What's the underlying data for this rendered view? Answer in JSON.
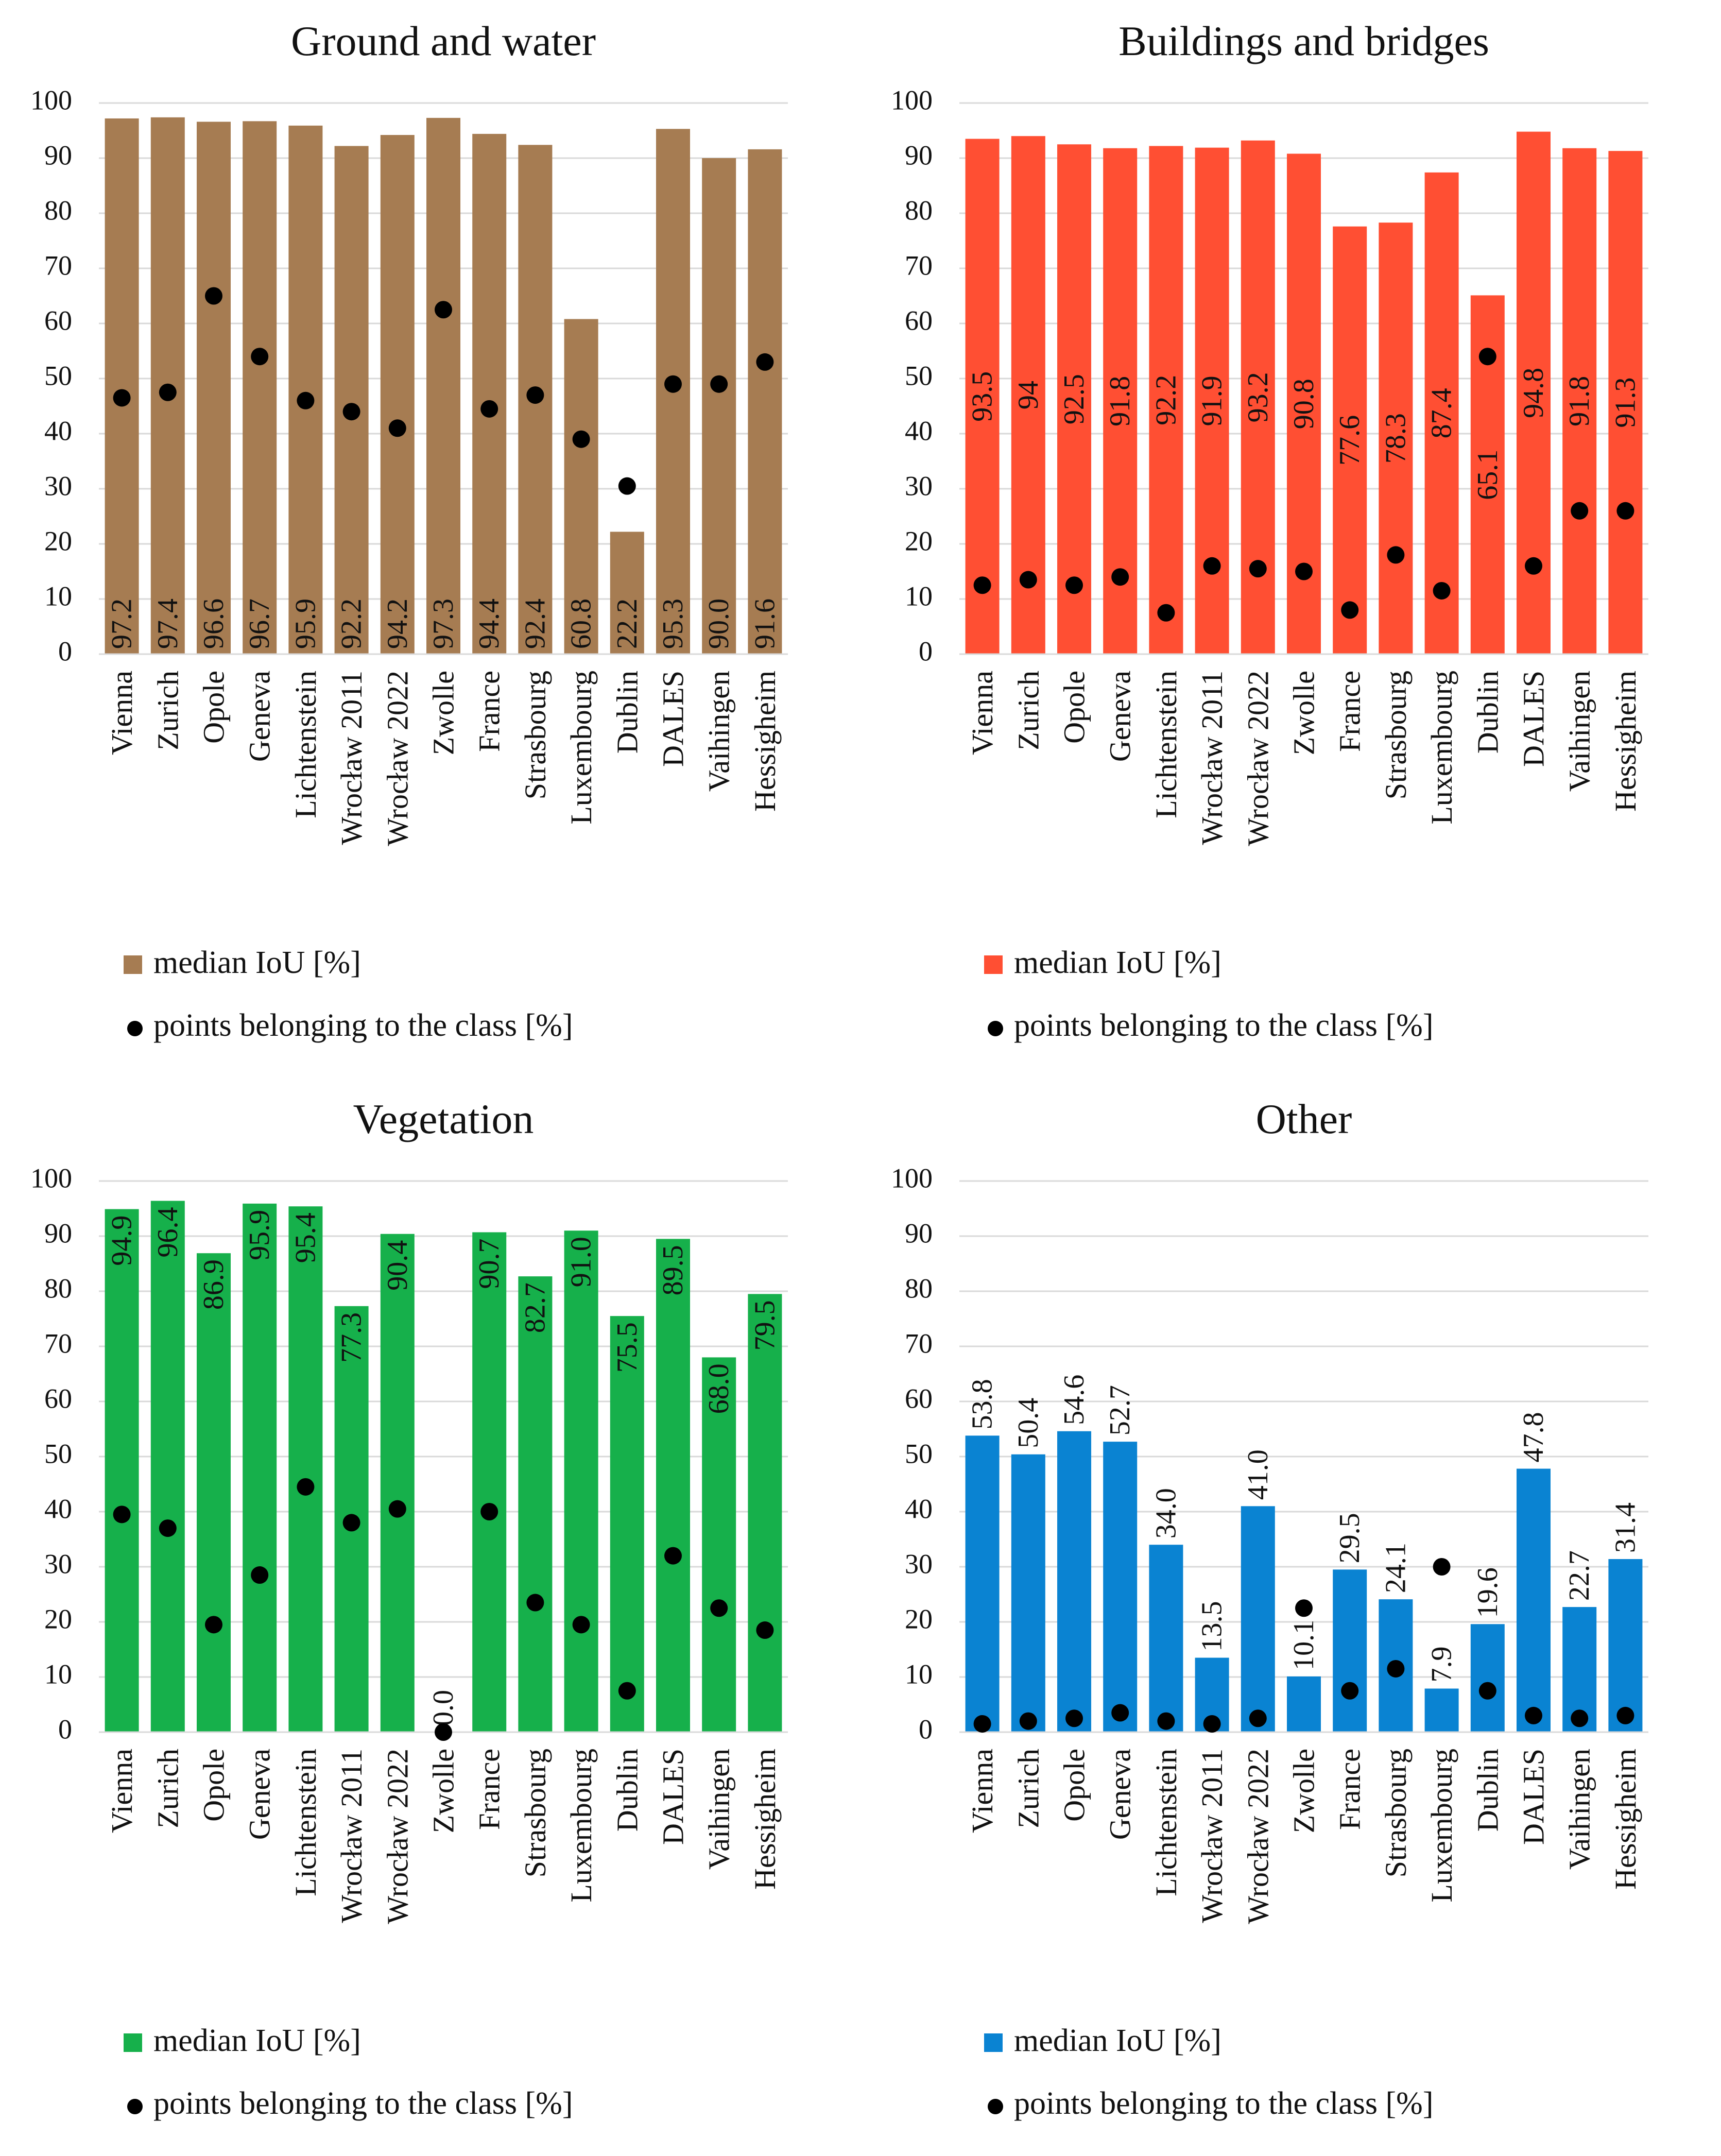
{
  "colors": {
    "ground": "#a67c52",
    "buildings": "#ff4f33",
    "vegetation": "#16b04b",
    "other": "#0a83d2",
    "points": "#000000"
  },
  "legend": {
    "bar_label": "median IoU [%]",
    "point_label": "points belonging to the class [%]"
  },
  "chart_data": [
    {
      "id": "ground",
      "type": "bar",
      "title": "Ground and water",
      "categories": [
        "Vienna",
        "Zurich",
        "Opole",
        "Geneva",
        "Lichtenstein",
        "Wrocław 2011",
        "Wrocław 2022",
        "Zwolle",
        "France",
        "Strasbourg",
        "Luxembourg",
        "Dublin",
        "DALES",
        "Vaihingen",
        "Hessigheim"
      ],
      "ylim": [
        0,
        100
      ],
      "yticks": [
        0,
        10,
        20,
        30,
        40,
        50,
        60,
        70,
        80,
        90,
        100
      ],
      "label_mode": "bottom",
      "series": [
        {
          "name": "median IoU [%]",
          "kind": "bar",
          "values": [
            97.2,
            97.4,
            96.6,
            96.7,
            95.9,
            92.2,
            94.2,
            97.3,
            94.4,
            92.4,
            60.8,
            22.2,
            95.3,
            90.0,
            91.6
          ],
          "labels": [
            "97.2",
            "97.4",
            "96.6",
            "96.7",
            "95.9",
            "92.2",
            "94.2",
            "97.3",
            "94.4",
            "92.4",
            "60.8",
            "22.2",
            "95.3",
            "90.0",
            "91.6"
          ]
        },
        {
          "name": "points belonging to the class [%]",
          "kind": "point",
          "values": [
            46.5,
            47.5,
            65.0,
            54.0,
            46.0,
            44.0,
            41.0,
            62.5,
            44.5,
            47.0,
            39.0,
            30.5,
            49.0,
            49.0,
            53.0
          ]
        }
      ]
    },
    {
      "id": "buildings",
      "type": "bar",
      "title": "Buildings and bridges",
      "categories": [
        "Vienna",
        "Zurich",
        "Opole",
        "Geneva",
        "Lichtenstein",
        "Wrocław 2011",
        "Wrocław 2022",
        "Zwolle",
        "France",
        "Strasbourg",
        "Luxembourg",
        "Dublin",
        "DALES",
        "Vaihingen",
        "Hessigheim"
      ],
      "ylim": [
        0,
        100
      ],
      "yticks": [
        0,
        10,
        20,
        30,
        40,
        50,
        60,
        70,
        80,
        90,
        100
      ],
      "label_mode": "middle",
      "series": [
        {
          "name": "median IoU [%]",
          "kind": "bar",
          "values": [
            93.5,
            94,
            92.5,
            91.8,
            92.2,
            91.9,
            93.2,
            90.8,
            77.6,
            78.3,
            87.4,
            65.1,
            94.8,
            91.8,
            91.3
          ],
          "labels": [
            "93.5",
            "94",
            "92.5",
            "91.8",
            "92.2",
            "91.9",
            "93.2",
            "90.8",
            "77.6",
            "78.3",
            "87.4",
            "65.1",
            "94.8",
            "91.8",
            "91.3"
          ]
        },
        {
          "name": "points belonging to the class [%]",
          "kind": "point",
          "values": [
            12.5,
            13.5,
            12.5,
            14.0,
            7.5,
            16.0,
            15.5,
            15.0,
            8.0,
            18.0,
            11.5,
            54.0,
            16.0,
            26.0,
            26.0
          ]
        }
      ]
    },
    {
      "id": "vegetation",
      "type": "bar",
      "title": "Vegetation",
      "categories": [
        "Vienna",
        "Zurich",
        "Opole",
        "Geneva",
        "Lichtenstein",
        "Wrocław 2011",
        "Wrocław 2022",
        "Zwolle",
        "France",
        "Strasbourg",
        "Luxembourg",
        "Dublin",
        "DALES",
        "Vaihingen",
        "Hessigheim"
      ],
      "ylim": [
        0,
        100
      ],
      "yticks": [
        0,
        10,
        20,
        30,
        40,
        50,
        60,
        70,
        80,
        90,
        100
      ],
      "label_mode": "top",
      "series": [
        {
          "name": "median IoU [%]",
          "kind": "bar",
          "values": [
            94.9,
            96.4,
            86.9,
            95.9,
            95.4,
            77.3,
            90.4,
            0.0,
            90.7,
            82.7,
            91.0,
            75.5,
            89.5,
            68.0,
            79.5
          ],
          "labels": [
            "94.9",
            "96.4",
            "86.9",
            "95.9",
            "95.4",
            "77.3",
            "90.4",
            "0.0",
            "90.7",
            "82.7",
            "91.0",
            "75.5",
            "89.5",
            "68.0",
            "79.5"
          ]
        },
        {
          "name": "points belonging to the class [%]",
          "kind": "point",
          "values": [
            39.5,
            37.0,
            19.5,
            28.5,
            44.5,
            38.0,
            40.5,
            0.0,
            40.0,
            23.5,
            19.5,
            7.5,
            32.0,
            22.5,
            18.5
          ]
        }
      ]
    },
    {
      "id": "other",
      "type": "bar",
      "title": "Other",
      "categories": [
        "Vienna",
        "Zurich",
        "Opole",
        "Geneva",
        "Lichtenstein",
        "Wrocław 2011",
        "Wrocław 2022",
        "Zwolle",
        "France",
        "Strasbourg",
        "Luxembourg",
        "Dublin",
        "DALES",
        "Vaihingen",
        "Hessigheim"
      ],
      "ylim": [
        0,
        100
      ],
      "yticks": [
        0,
        10,
        20,
        30,
        40,
        50,
        60,
        70,
        80,
        90,
        100
      ],
      "label_mode": "above",
      "series": [
        {
          "name": "median IoU [%]",
          "kind": "bar",
          "values": [
            53.8,
            50.4,
            54.6,
            52.7,
            34.0,
            13.5,
            41.0,
            10.1,
            29.5,
            24.1,
            7.9,
            19.6,
            47.8,
            22.7,
            31.4
          ],
          "labels": [
            "53.8",
            "50.4",
            "54.6",
            "52.7",
            "34.0",
            "13.5",
            "41.0",
            "10.1",
            "29.5",
            "24.1",
            "7.9",
            "19.6",
            "47.8",
            "22.7",
            "31.4"
          ]
        },
        {
          "name": "points belonging to the class [%]",
          "kind": "point",
          "values": [
            1.5,
            2.0,
            2.5,
            3.5,
            2.0,
            1.5,
            2.5,
            22.5,
            7.5,
            11.5,
            30.0,
            7.5,
            3.0,
            2.5,
            3.0
          ]
        }
      ]
    }
  ]
}
